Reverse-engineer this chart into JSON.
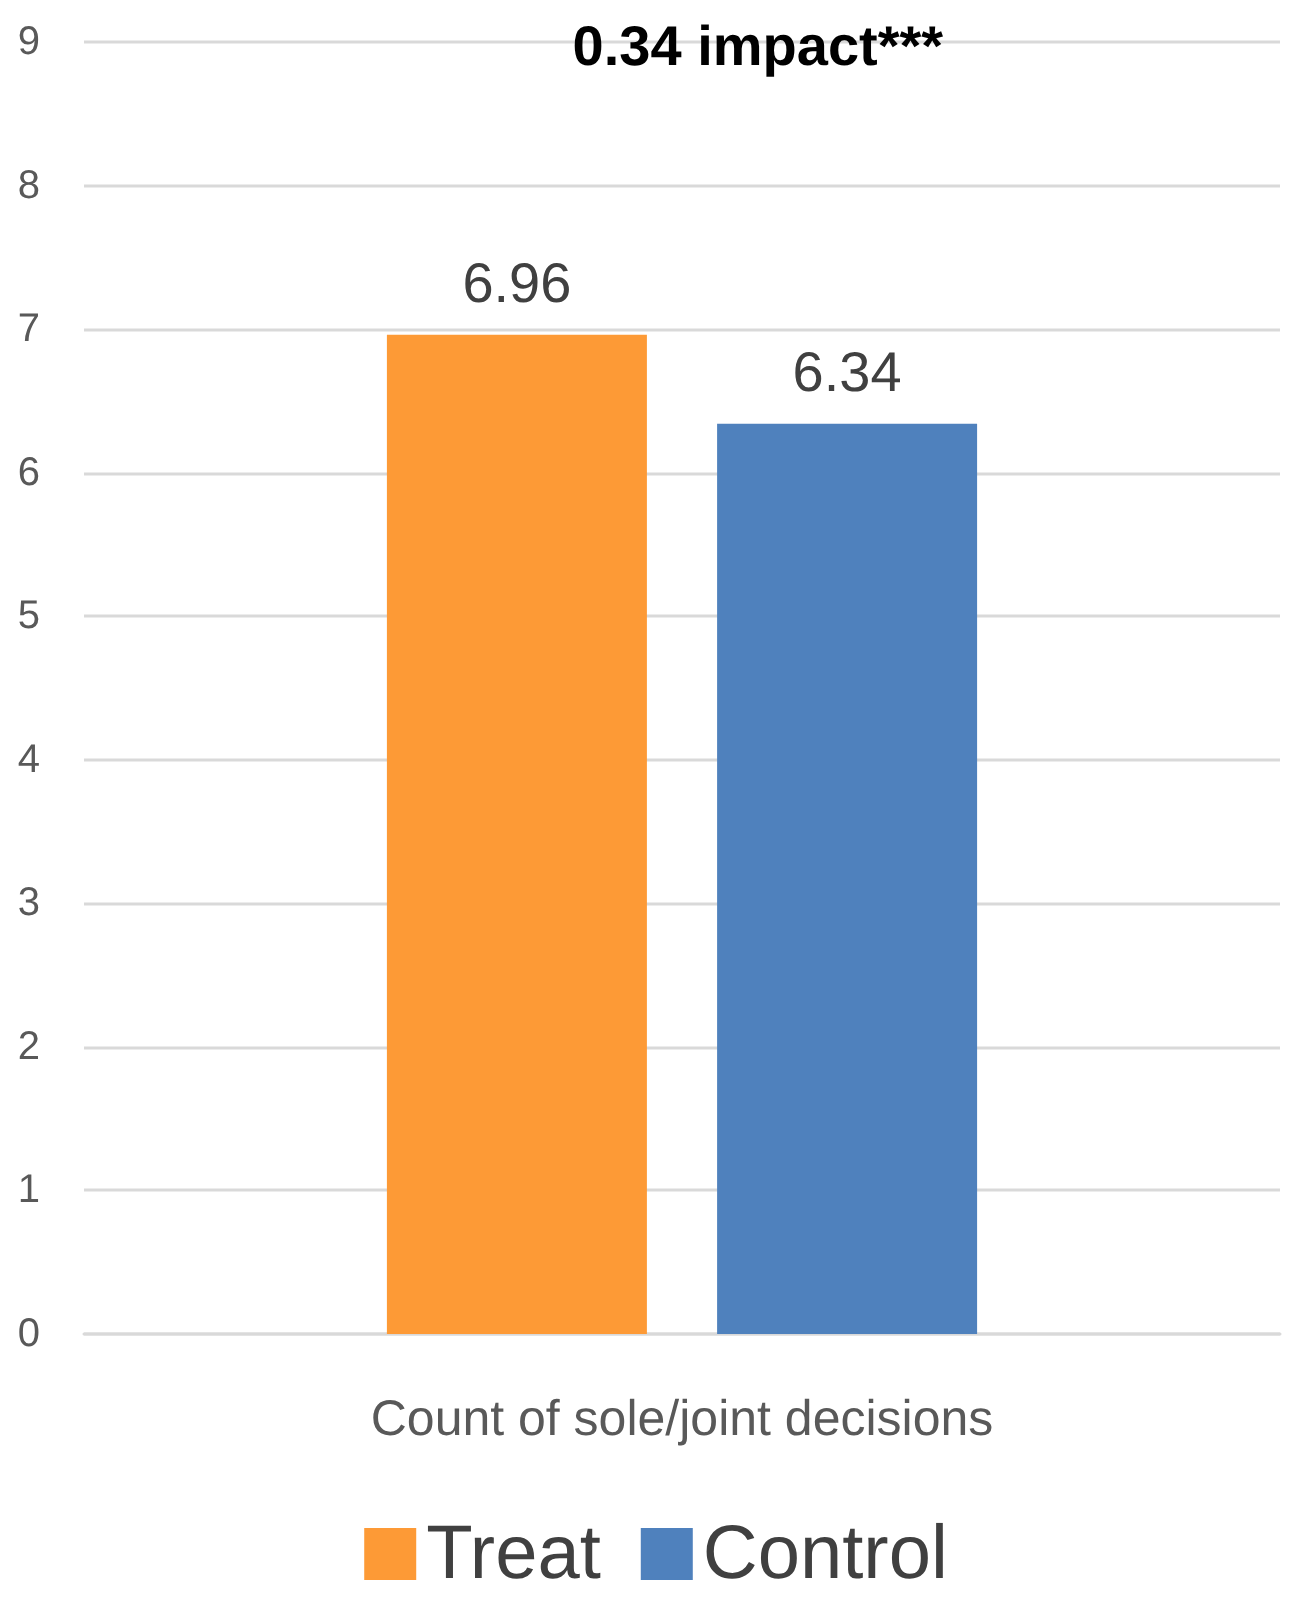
{
  "chart_data": {
    "type": "bar",
    "title": "0.34 impact***",
    "categories": [
      "Count of sole/joint decisions"
    ],
    "series": [
      {
        "name": "Treat",
        "color": "#fd9a36",
        "values": [
          6.96
        ]
      },
      {
        "name": "Control",
        "color": "#4f81bd",
        "values": [
          6.34
        ]
      }
    ],
    "ylim": [
      0,
      9
    ],
    "yticks": [
      0,
      1,
      2,
      3,
      4,
      5,
      6,
      7,
      8,
      9
    ],
    "grid": "y",
    "legend": "bottom",
    "data_labels": true
  }
}
